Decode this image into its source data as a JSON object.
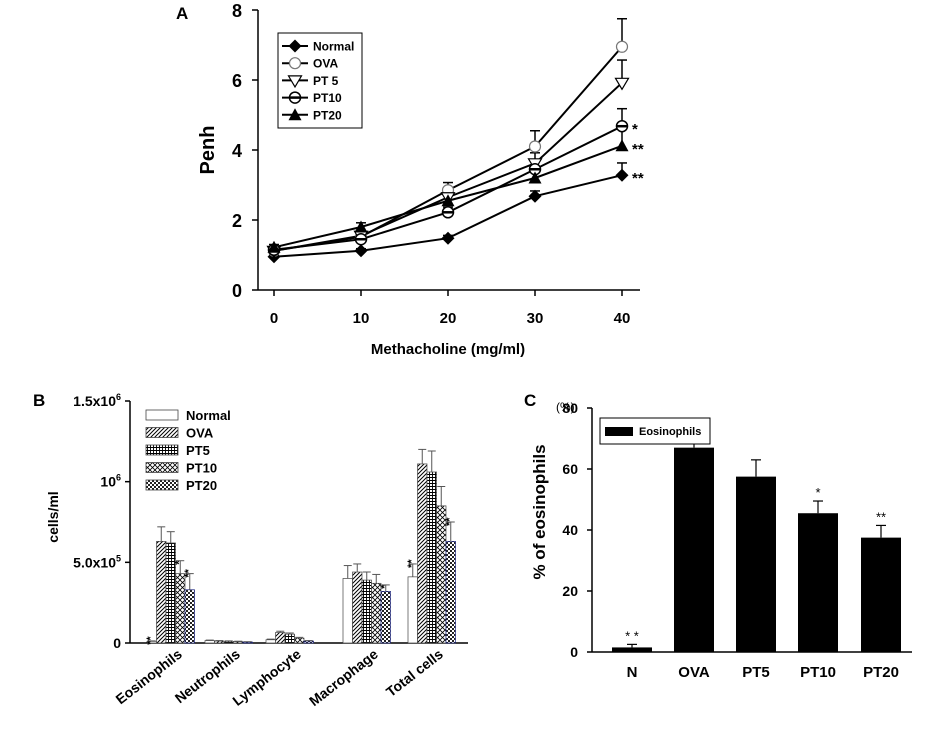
{
  "chart_data": [
    {
      "panel": "A",
      "type": "line",
      "xlabel": "Methacholine (mg/ml)",
      "ylabel": "Penh",
      "x": [
        0,
        10,
        20,
        30,
        40
      ],
      "xticks": [
        "0",
        "10",
        "20",
        "30",
        "40"
      ],
      "yticks": [
        "0",
        "2",
        "4",
        "6",
        "8"
      ],
      "xlim": [
        0,
        40
      ],
      "ylim": [
        0,
        8
      ],
      "legend_position": "top-left",
      "series": [
        {
          "name": "Normal",
          "marker": "diamond",
          "values": [
            0.95,
            1.12,
            1.48,
            2.68,
            3.28
          ],
          "errors": [
            0.05,
            0.06,
            0.08,
            0.15,
            0.35
          ]
        },
        {
          "name": "OVA",
          "marker": "circle-open",
          "values": [
            1.12,
            1.52,
            2.85,
            4.1,
            6.95
          ],
          "errors": [
            0.08,
            0.12,
            0.22,
            0.45,
            0.8
          ]
        },
        {
          "name": "PT 5",
          "marker": "triangle-down-open",
          "values": [
            1.12,
            1.55,
            2.65,
            3.62,
            5.92
          ],
          "errors": [
            0.08,
            0.12,
            0.2,
            0.3,
            0.65
          ]
        },
        {
          "name": "PT10",
          "marker": "circle-cross",
          "values": [
            1.15,
            1.45,
            2.22,
            3.45,
            4.68
          ],
          "errors": [
            0.08,
            0.1,
            0.15,
            0.25,
            0.5
          ]
        },
        {
          "name": "PT20",
          "marker": "triangle-up",
          "values": [
            1.22,
            1.8,
            2.55,
            3.2,
            4.12
          ],
          "errors": [
            0.08,
            0.12,
            0.18,
            0.32,
            0.48
          ]
        }
      ],
      "annotations": [
        {
          "series": "PT10",
          "x": 40,
          "text": "*"
        },
        {
          "series": "PT20",
          "x": 40,
          "text": "**"
        },
        {
          "series": "Normal",
          "x": 40,
          "text": "**"
        }
      ]
    },
    {
      "panel": "B",
      "type": "bar",
      "ylabel": "cells/ml",
      "categories": [
        "Eosinophils",
        "Neutrophils",
        "Lymphocyte",
        "Macrophage",
        "Total  cells"
      ],
      "ylim": [
        0,
        1500000
      ],
      "yticks": [
        {
          "value": 0,
          "base": "0",
          "sup": ""
        },
        {
          "value": 500000,
          "base": "5.0x10",
          "sup": "5"
        },
        {
          "value": 1000000,
          "base": "10",
          "sup": "6"
        },
        {
          "value": 1500000,
          "base": "1.5x10",
          "sup": "6"
        }
      ],
      "legend_position": "top-center",
      "series": [
        {
          "name": "Normal",
          "pattern": "white",
          "values": [
            10000,
            15000,
            20000,
            400000,
            410000
          ],
          "errors": [
            3000,
            3000,
            4000,
            80000,
            80000
          ]
        },
        {
          "name": "OVA",
          "pattern": "diagonal",
          "values": [
            630000,
            12000,
            65000,
            440000,
            1110000
          ],
          "errors": [
            90000,
            3000,
            8000,
            50000,
            90000
          ]
        },
        {
          "name": "PT5",
          "pattern": "grid",
          "values": [
            620000,
            10000,
            55000,
            390000,
            1060000
          ],
          "errors": [
            70000,
            3000,
            7000,
            50000,
            130000
          ]
        },
        {
          "name": "PT10",
          "pattern": "crosshatch",
          "values": [
            430000,
            8000,
            30000,
            370000,
            850000
          ],
          "errors": [
            80000,
            3000,
            5000,
            55000,
            120000
          ]
        },
        {
          "name": "PT20",
          "pattern": "checker",
          "values": [
            330000,
            6000,
            12000,
            320000,
            630000
          ],
          "errors": [
            100000,
            2000,
            3000,
            40000,
            120000
          ]
        }
      ],
      "annotations": [
        {
          "category": "Eosinophils",
          "series": "Normal",
          "text": "**"
        },
        {
          "category": "Eosinophils",
          "series": "PT10",
          "text": "*"
        },
        {
          "category": "Eosinophils",
          "series": "PT20",
          "text": "**"
        },
        {
          "category": "Macrophage",
          "series": "PT20",
          "text": "*"
        },
        {
          "category": "Total  cells",
          "series": "Normal",
          "text": "**"
        },
        {
          "category": "Total  cells",
          "series": "PT20",
          "text": "**"
        }
      ]
    },
    {
      "panel": "C",
      "type": "bar",
      "ylabel": "% of eosinophils",
      "unit_label": "(%)",
      "categories": [
        "N",
        "OVA",
        "PT5",
        "PT10",
        "PT20"
      ],
      "values": [
        1.5,
        67,
        57.5,
        45.5,
        37.5
      ],
      "errors": [
        1.0,
        6.0,
        5.5,
        4.0,
        4.0
      ],
      "ylim": [
        0,
        80
      ],
      "yticks": [
        "0",
        "20",
        "40",
        "60",
        "80"
      ],
      "legend_position": "top-left",
      "series_name": "Eosinophils",
      "annotations": [
        {
          "category": "N",
          "text": "* *"
        },
        {
          "category": "PT10",
          "text": "*"
        },
        {
          "category": "PT20",
          "text": "**"
        }
      ]
    }
  ],
  "panel_labels": {
    "a": "A",
    "b": "B",
    "c": "C"
  }
}
